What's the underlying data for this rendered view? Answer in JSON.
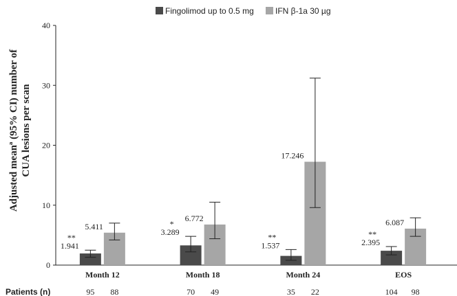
{
  "chart_data": {
    "type": "bar",
    "categories": [
      "Month 12",
      "Month 18",
      "Month 24",
      "EOS"
    ],
    "series": [
      {
        "name": "Fingolimod up to 0.5 mg",
        "color": "#4a4a4a",
        "values": [
          1.941,
          3.289,
          1.537,
          2.395
        ],
        "ci_low": [
          1.3,
          2.2,
          0.8,
          1.7
        ],
        "ci_high": [
          2.5,
          4.8,
          2.6,
          3.1
        ],
        "significance": [
          "**",
          "*",
          "**",
          "**"
        ],
        "patients": [
          "95",
          "70",
          "35",
          "104"
        ]
      },
      {
        "name": "IFN β-1a 30 µg",
        "color": "#a6a6a6",
        "values": [
          5.411,
          6.772,
          17.246,
          6.087
        ],
        "ci_low": [
          4.2,
          4.4,
          9.6,
          4.8
        ],
        "ci_high": [
          7.0,
          10.5,
          31.2,
          7.9
        ],
        "significance": [
          "",
          "",
          "",
          ""
        ],
        "patients": [
          "88",
          "49",
          "22",
          "98"
        ]
      }
    ],
    "ylabel_line1": "Adjusted meanª (95% CI) number of",
    "ylabel_line2": "CUA lesions per scan",
    "ylim": [
      0,
      40
    ],
    "yticks": [
      0,
      10,
      20,
      30,
      40
    ],
    "grid": false,
    "legend_position": "top-center",
    "patients_label": "Patients (n)"
  }
}
